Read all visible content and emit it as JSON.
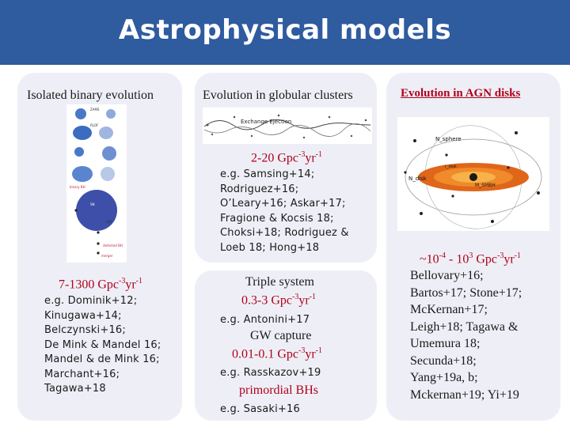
{
  "header": {
    "title": "Astrophysical models"
  },
  "isolated": {
    "title": "Isolated binary evolution",
    "figure_labels": {
      "label1": "ZAMS",
      "label2": "RLOF",
      "label3": "SN",
      "label4": "binary BH",
      "label5": "GW",
      "label6": "merger",
      "label7": "detected BH"
    },
    "rate_prefix": "7-1300 Gpc",
    "rate_exp1": "-3",
    "rate_mid": "yr",
    "rate_exp2": "-1",
    "refs": "e.g. Dominik+12;\nKinugawa+14;\nBelczynski+16;\nDe Mink & Mandel 16;\nMandel & de Mink 16;\nMarchant+16;\nTagawa+18"
  },
  "globular": {
    "title": "Evolution in globular clusters",
    "figure_label": "Exchange Ejection",
    "rate_prefix": "2-20 Gpc",
    "rate_exp1": "-3",
    "rate_mid": "yr",
    "rate_exp2": "-1",
    "refs": "e.g. Samsing+14;\nRodriguez+16;\nO’Leary+16; Askar+17;\nFragione & Kocsis 18;\nChoksi+18; Rodriguez &\nLoeb 18; Hong+18"
  },
  "triple": {
    "title": "Triple system",
    "rate_prefix": "0.3-3 Gpc",
    "rate_exp1": "-3",
    "rate_mid": "yr",
    "rate_exp2": "-1",
    "refs": "e.g. Antonini+17"
  },
  "gwcapture": {
    "title": "GW capture",
    "rate_prefix": "0.01-0.1 Gpc",
    "rate_exp1": "-3",
    "rate_mid": "yr",
    "rate_exp2": "-1",
    "refs": "e.g. Rasskazov+19"
  },
  "primordial": {
    "title": "primordial BHs",
    "refs": "e.g. Sasaki+16"
  },
  "agn": {
    "title": "Evolution in AGN disks",
    "figure_labels": {
      "n_sphere": "N_sphere",
      "n_disk": "N_disk",
      "m_smbh": "M_SMBH",
      "rdisk": "r_disk"
    },
    "rate_prefix": "~10",
    "rate_exp0": "-4",
    "rate_mid0": " - 10",
    "rate_exp1": "3",
    "rate_mid1": " Gpc",
    "rate_exp2": "-3",
    "rate_mid2": "yr",
    "rate_exp3": "-1",
    "refs": "Bellovary+16;\nBartos+17; Stone+17;\nMcKernan+17;\nLeigh+18; Tagawa &\nUmemura 18;\nSecunda+18;\nYang+19a, b;\nMckernan+19; Yi+19"
  },
  "colors": {
    "header": "#2f5b9f",
    "panel": "#eeeff6",
    "accent_red": "#b0001c"
  }
}
